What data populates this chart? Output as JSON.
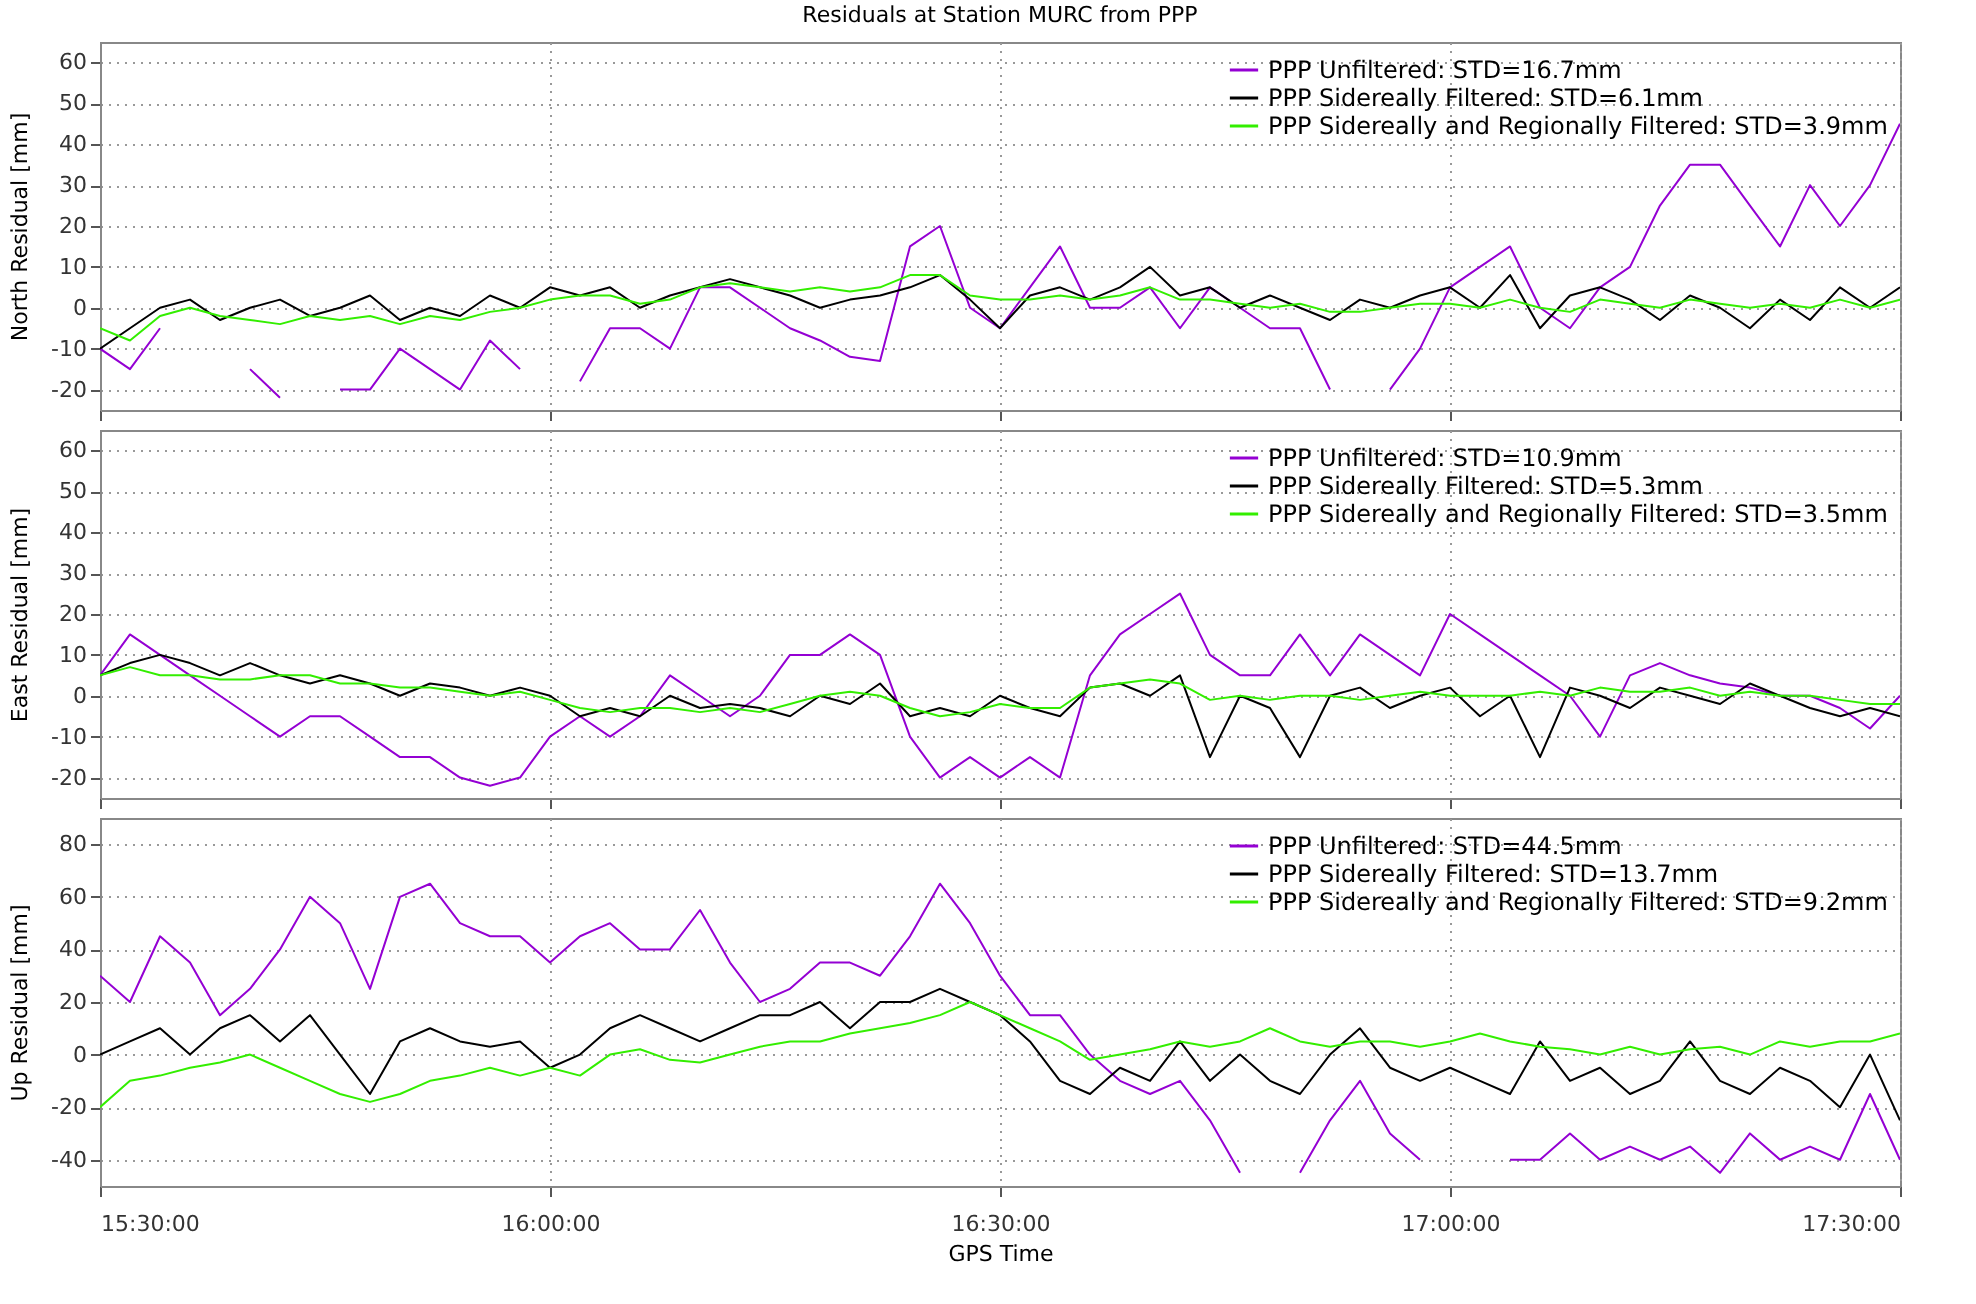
{
  "chart_data": [
    {
      "type": "line",
      "title": "Residuals at Station MURC from PPP",
      "ylabel": "North Residual [mm]",
      "x": [
        15.5,
        15.5333,
        15.5667,
        15.6,
        15.6333,
        15.6667,
        15.7,
        15.7333,
        15.7667,
        15.8,
        15.8333,
        15.8667,
        15.9,
        15.9333,
        15.9667,
        16,
        16.0333,
        16.0667,
        16.1,
        16.1333,
        16.1667,
        16.2,
        16.2333,
        16.2667,
        16.3,
        16.3333,
        16.3667,
        16.4,
        16.4333,
        16.4667,
        16.5,
        16.5333,
        16.5667,
        16.6,
        16.6333,
        16.6667,
        16.7,
        16.7333,
        16.7667,
        16.8,
        16.8333,
        16.8667,
        16.9,
        16.9333,
        16.9667,
        17,
        17.0333,
        17.0667,
        17.1,
        17.1333,
        17.1667,
        17.2,
        17.2333,
        17.2667,
        17.3,
        17.3333,
        17.3667,
        17.4,
        17.4333,
        17.4667,
        17.5
      ],
      "series": [
        {
          "name": "PPP Unfiltered: STD=16.7mm",
          "color": "#9400d3",
          "values": [
            -10,
            -15,
            -5,
            null,
            null,
            -15,
            -22,
            null,
            -20,
            -20,
            -10,
            -15,
            -20,
            -8,
            -15,
            null,
            -18,
            -5,
            -5,
            -10,
            5,
            5,
            0,
            -5,
            -8,
            -12,
            -13,
            15,
            20,
            0,
            -5,
            5,
            15,
            0,
            0,
            5,
            -5,
            5,
            0,
            -5,
            -5,
            -20,
            null,
            -20,
            -10,
            5,
            10,
            15,
            0,
            -5,
            5,
            10,
            25,
            35,
            35,
            25,
            15,
            30,
            20,
            30,
            45
          ]
        },
        {
          "name": "PPP Sidereally Filtered: STD=6.1mm",
          "color": "#000000",
          "values": [
            -10,
            -5,
            0,
            2,
            -3,
            0,
            2,
            -2,
            0,
            3,
            -3,
            0,
            -2,
            3,
            0,
            5,
            3,
            5,
            0,
            3,
            5,
            7,
            5,
            3,
            0,
            2,
            3,
            5,
            8,
            2,
            -5,
            3,
            5,
            2,
            5,
            10,
            3,
            5,
            0,
            3,
            0,
            -3,
            2,
            0,
            3,
            5,
            0,
            8,
            -5,
            3,
            5,
            2,
            -3,
            3,
            0,
            -5,
            2,
            -3,
            5,
            0,
            5
          ]
        },
        {
          "name": "PPP Sidereally and Regionally Filtered: STD=3.9mm",
          "color": "#33ee00",
          "values": [
            -5,
            -8,
            -2,
            0,
            -2,
            -3,
            -4,
            -2,
            -3,
            -2,
            -4,
            -2,
            -3,
            -1,
            0,
            2,
            3,
            3,
            1,
            2,
            5,
            6,
            5,
            4,
            5,
            4,
            5,
            8,
            8,
            3,
            2,
            2,
            3,
            2,
            3,
            5,
            2,
            2,
            1,
            0,
            1,
            -1,
            -1,
            0,
            1,
            1,
            0,
            2,
            0,
            -1,
            2,
            1,
            0,
            2,
            1,
            0,
            1,
            0,
            2,
            0,
            2
          ]
        }
      ],
      "xlim": [
        15.5,
        17.5
      ],
      "xticks": [
        {
          "value": 15.5,
          "label": null
        },
        {
          "value": 16,
          "label": null
        },
        {
          "value": 16.5,
          "label": null
        },
        {
          "value": 17,
          "label": null
        },
        {
          "value": 17.5,
          "label": null
        }
      ],
      "ylim": [
        -25,
        65
      ],
      "yticks": [
        -20,
        -10,
        0,
        10,
        20,
        30,
        40,
        50,
        60
      ],
      "grid": true,
      "legend": "top right",
      "tick_labels": "y"
    },
    {
      "type": "line",
      "ylabel": "East Residual [mm]",
      "x": [
        15.5,
        15.5333,
        15.5667,
        15.6,
        15.6333,
        15.6667,
        15.7,
        15.7333,
        15.7667,
        15.8,
        15.8333,
        15.8667,
        15.9,
        15.9333,
        15.9667,
        16,
        16.0333,
        16.0667,
        16.1,
        16.1333,
        16.1667,
        16.2,
        16.2333,
        16.2667,
        16.3,
        16.3333,
        16.3667,
        16.4,
        16.4333,
        16.4667,
        16.5,
        16.5333,
        16.5667,
        16.6,
        16.6333,
        16.6667,
        16.7,
        16.7333,
        16.7667,
        16.8,
        16.8333,
        16.8667,
        16.9,
        16.9333,
        16.9667,
        17,
        17.0333,
        17.0667,
        17.1,
        17.1333,
        17.1667,
        17.2,
        17.2333,
        17.2667,
        17.3,
        17.3333,
        17.3667,
        17.4,
        17.4333,
        17.4667,
        17.5
      ],
      "series": [
        {
          "name": "PPP Unfiltered: STD=10.9mm",
          "color": "#9400d3",
          "values": [
            5,
            15,
            10,
            5,
            0,
            -5,
            -10,
            -5,
            -5,
            -10,
            -15,
            -15,
            -20,
            -22,
            -20,
            -10,
            -5,
            -10,
            -5,
            5,
            0,
            -5,
            0,
            10,
            10,
            15,
            10,
            -10,
            -20,
            -15,
            -20,
            -15,
            -20,
            5,
            15,
            20,
            25,
            10,
            5,
            5,
            15,
            5,
            15,
            10,
            5,
            20,
            15,
            10,
            5,
            0,
            -10,
            5,
            8,
            5,
            3,
            2,
            0,
            0,
            -3,
            -8,
            0
          ]
        },
        {
          "name": "PPP Sidereally Filtered: STD=5.3mm",
          "color": "#000000",
          "values": [
            5,
            8,
            10,
            8,
            5,
            8,
            5,
            3,
            5,
            3,
            0,
            3,
            2,
            0,
            2,
            0,
            -5,
            -3,
            -5,
            0,
            -3,
            -2,
            -3,
            -5,
            0,
            -2,
            3,
            -5,
            -3,
            -5,
            0,
            -3,
            -5,
            2,
            3,
            0,
            5,
            -15,
            0,
            -3,
            -15,
            0,
            2,
            -3,
            0,
            2,
            -5,
            0,
            -15,
            2,
            0,
            -3,
            2,
            0,
            -2,
            3,
            0,
            -3,
            -5,
            -3,
            -5
          ]
        },
        {
          "name": "PPP Sidereally and Regionally Filtered: STD=3.5mm",
          "color": "#33ee00",
          "values": [
            5,
            7,
            5,
            5,
            4,
            4,
            5,
            5,
            3,
            3,
            2,
            2,
            1,
            0,
            1,
            -1,
            -3,
            -4,
            -3,
            -3,
            -4,
            -3,
            -4,
            -2,
            0,
            1,
            0,
            -3,
            -5,
            -4,
            -2,
            -3,
            -3,
            2,
            3,
            4,
            3,
            -1,
            0,
            -1,
            0,
            0,
            -1,
            0,
            1,
            0,
            0,
            0,
            1,
            0,
            2,
            1,
            1,
            2,
            0,
            1,
            0,
            0,
            -1,
            -2,
            -2
          ]
        }
      ],
      "xlim": [
        15.5,
        17.5
      ],
      "xticks": [
        {
          "value": 15.5,
          "label": null
        },
        {
          "value": 16,
          "label": null
        },
        {
          "value": 16.5,
          "label": null
        },
        {
          "value": 17,
          "label": null
        },
        {
          "value": 17.5,
          "label": null
        }
      ],
      "ylim": [
        -25,
        65
      ],
      "yticks": [
        -20,
        -10,
        0,
        10,
        20,
        30,
        40,
        50,
        60
      ],
      "grid": true,
      "legend": "top right",
      "tick_labels": "y"
    },
    {
      "type": "line",
      "xlabel": "GPS Time",
      "ylabel": "Up Residual [mm]",
      "x": [
        15.5,
        15.5333,
        15.5667,
        15.6,
        15.6333,
        15.6667,
        15.7,
        15.7333,
        15.7667,
        15.8,
        15.8333,
        15.8667,
        15.9,
        15.9333,
        15.9667,
        16,
        16.0333,
        16.0667,
        16.1,
        16.1333,
        16.1667,
        16.2,
        16.2333,
        16.2667,
        16.3,
        16.3333,
        16.3667,
        16.4,
        16.4333,
        16.4667,
        16.5,
        16.5333,
        16.5667,
        16.6,
        16.6333,
        16.6667,
        16.7,
        16.7333,
        16.7667,
        16.8,
        16.8333,
        16.8667,
        16.9,
        16.9333,
        16.9667,
        17,
        17.0333,
        17.0667,
        17.1,
        17.1333,
        17.1667,
        17.2,
        17.2333,
        17.2667,
        17.3,
        17.3333,
        17.3667,
        17.4,
        17.4333,
        17.4667,
        17.5
      ],
      "series": [
        {
          "name": "PPP Unfiltered: STD=44.5mm",
          "color": "#9400d3",
          "values": [
            30,
            20,
            45,
            35,
            15,
            25,
            40,
            60,
            50,
            25,
            60,
            65,
            50,
            45,
            45,
            35,
            45,
            50,
            40,
            40,
            55,
            35,
            20,
            25,
            35,
            35,
            30,
            45,
            65,
            50,
            30,
            15,
            15,
            0,
            -10,
            -15,
            -10,
            -25,
            -45,
            null,
            -45,
            -25,
            -10,
            -30,
            -40,
            null,
            null,
            -40,
            -40,
            -30,
            -40,
            -35,
            -40,
            -35,
            -45,
            -30,
            -40,
            -35,
            -40,
            -15,
            -40
          ]
        },
        {
          "name": "PPP Sidereally Filtered: STD=13.7mm",
          "color": "#000000",
          "values": [
            0,
            5,
            10,
            0,
            10,
            15,
            5,
            15,
            0,
            -15,
            5,
            10,
            5,
            3,
            5,
            -5,
            0,
            10,
            15,
            10,
            5,
            10,
            15,
            15,
            20,
            10,
            20,
            20,
            25,
            20,
            15,
            5,
            -10,
            -15,
            -5,
            -10,
            5,
            -10,
            0,
            -10,
            -15,
            0,
            10,
            -5,
            -10,
            -5,
            -10,
            -15,
            5,
            -10,
            -5,
            -15,
            -10,
            5,
            -10,
            -15,
            -5,
            -10,
            -20,
            0,
            -25
          ]
        },
        {
          "name": "PPP Sidereally and Regionally Filtered: STD=9.2mm",
          "color": "#33ee00",
          "values": [
            -20,
            -10,
            -8,
            -5,
            -3,
            0,
            -5,
            -10,
            -15,
            -18,
            -15,
            -10,
            -8,
            -5,
            -8,
            -5,
            -8,
            0,
            2,
            -2,
            -3,
            0,
            3,
            5,
            5,
            8,
            10,
            12,
            15,
            20,
            15,
            10,
            5,
            -2,
            0,
            2,
            5,
            3,
            5,
            10,
            5,
            3,
            5,
            5,
            3,
            5,
            8,
            5,
            3,
            2,
            0,
            3,
            0,
            2,
            3,
            0,
            5,
            3,
            5,
            5,
            8
          ]
        }
      ],
      "xlim": [
        15.5,
        17.5
      ],
      "xticks": [
        {
          "value": 15.5,
          "label": "15:30:00"
        },
        {
          "value": 16,
          "label": "16:00:00"
        },
        {
          "value": 16.5,
          "label": "16:30:00"
        },
        {
          "value": 17,
          "label": "17:00:00"
        },
        {
          "value": 17.5,
          "label": "17:30:00"
        }
      ],
      "ylim": [
        -50,
        90
      ],
      "yticks": [
        -40,
        -20,
        0,
        20,
        40,
        60,
        80
      ],
      "grid": true,
      "legend": "top right"
    }
  ]
}
